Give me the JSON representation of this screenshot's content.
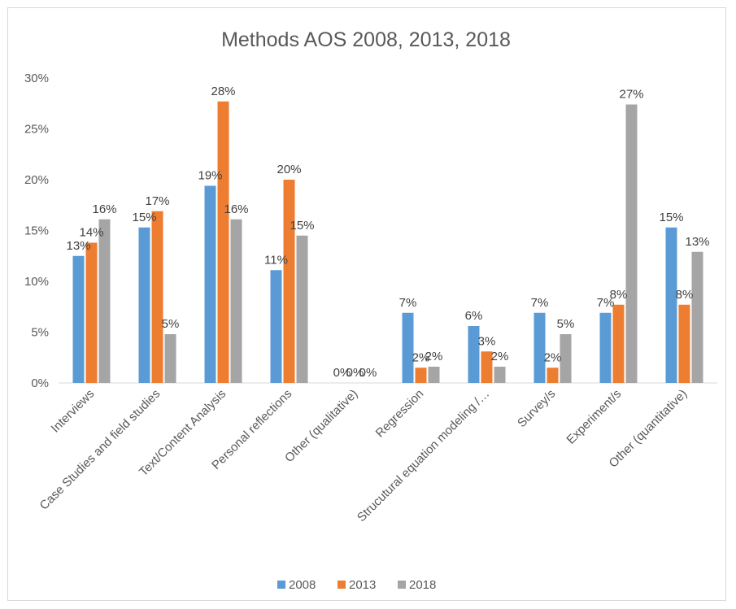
{
  "chart_data": {
    "type": "bar",
    "title": "Methods AOS 2008, 2013, 2018",
    "categories": [
      "Interviews",
      "Case Studies and field studies",
      "Text/Content Analysis",
      "Personal reflections",
      "Other (qualitative)",
      "Regression",
      "Strucutural equation modeling /…",
      "Survey/s",
      "Experiment/s",
      "Other (quantitative)"
    ],
    "series": [
      {
        "name": "2008",
        "color": "#5b9bd5",
        "values": [
          12.5,
          15.3,
          19.4,
          11.1,
          0,
          6.9,
          5.6,
          6.9,
          6.9,
          15.3
        ],
        "labels": [
          "13%",
          "15%",
          "19%",
          "11%",
          "0%",
          "7%",
          "6%",
          "7%",
          "7%",
          "15%"
        ]
      },
      {
        "name": "2013",
        "color": "#ed7d31",
        "values": [
          13.8,
          16.9,
          27.7,
          20.0,
          0,
          1.5,
          3.1,
          1.5,
          7.7,
          7.7
        ],
        "labels": [
          "14%",
          "17%",
          "28%",
          "20%",
          "0%",
          "2%",
          "3%",
          "2%",
          "8%",
          "8%"
        ]
      },
      {
        "name": "2018",
        "color": "#a5a5a5",
        "values": [
          16.1,
          4.8,
          16.1,
          14.5,
          0,
          1.6,
          1.6,
          4.8,
          27.4,
          12.9
        ],
        "labels": [
          "16%",
          "5%",
          "16%",
          "15%",
          "0%",
          "2%",
          "2%",
          "5%",
          "27%",
          "13%"
        ]
      }
    ],
    "yticks": [
      "0%",
      "5%",
      "10%",
      "15%",
      "20%",
      "25%",
      "30%"
    ],
    "ylim": [
      0,
      30
    ],
    "xlabel": "",
    "ylabel": "",
    "grid": false,
    "legend_position": "bottom"
  }
}
